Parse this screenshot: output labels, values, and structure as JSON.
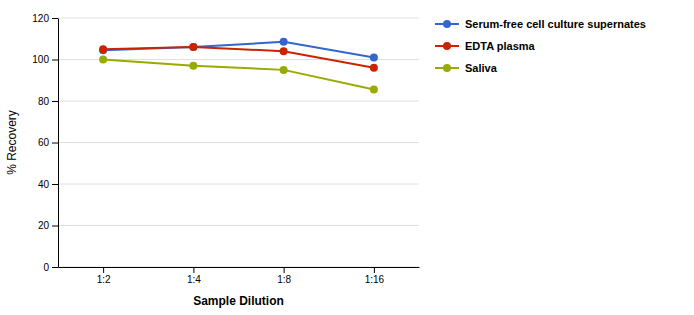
{
  "chart_data": {
    "type": "line",
    "categories": [
      "1:2",
      "1:4",
      "1:8",
      "1:16"
    ],
    "series": [
      {
        "name": "Serum-free cell culture supernates",
        "color": "#3366CC",
        "marker": "circle",
        "values": [
          104.5,
          106.0,
          108.5,
          101.0
        ]
      },
      {
        "name": "EDTA plasma",
        "color": "#CC2200",
        "marker": "circle",
        "values": [
          105.0,
          106.0,
          104.0,
          96.0
        ]
      },
      {
        "name": "Saliva",
        "color": "#99AA00",
        "marker": "circle",
        "values": [
          100.0,
          97.0,
          95.0,
          85.5
        ]
      }
    ],
    "xlabel": "Sample Dilution",
    "ylabel": "% Recovery",
    "ylim": [
      0,
      120
    ],
    "yticks": [
      0,
      20,
      40,
      60,
      80,
      100,
      120
    ],
    "grid": true,
    "legend": "right"
  }
}
